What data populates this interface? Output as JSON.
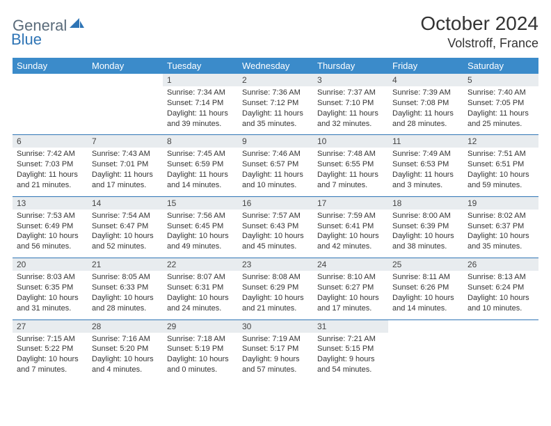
{
  "logo": {
    "general": "General",
    "blue": "Blue"
  },
  "title": "October 2024",
  "location": "Volstroff, France",
  "colors": {
    "header_bg": "#3b8bca",
    "header_text": "#ffffff",
    "daynum_bg": "#e8ecef",
    "rule": "#2e74b5",
    "body_text": "#333333",
    "logo_gray": "#5a6b7a",
    "logo_blue": "#2e74b5"
  },
  "fonts": {
    "title_pt": 28,
    "location_pt": 18,
    "dow_pt": 13,
    "daynum_pt": 12,
    "cell_pt": 11
  },
  "dow": [
    "Sunday",
    "Monday",
    "Tuesday",
    "Wednesday",
    "Thursday",
    "Friday",
    "Saturday"
  ],
  "weeks": [
    [
      null,
      null,
      {
        "n": "1",
        "sr": "Sunrise: 7:34 AM",
        "ss": "Sunset: 7:14 PM",
        "d1": "Daylight: 11 hours",
        "d2": "and 39 minutes."
      },
      {
        "n": "2",
        "sr": "Sunrise: 7:36 AM",
        "ss": "Sunset: 7:12 PM",
        "d1": "Daylight: 11 hours",
        "d2": "and 35 minutes."
      },
      {
        "n": "3",
        "sr": "Sunrise: 7:37 AM",
        "ss": "Sunset: 7:10 PM",
        "d1": "Daylight: 11 hours",
        "d2": "and 32 minutes."
      },
      {
        "n": "4",
        "sr": "Sunrise: 7:39 AM",
        "ss": "Sunset: 7:08 PM",
        "d1": "Daylight: 11 hours",
        "d2": "and 28 minutes."
      },
      {
        "n": "5",
        "sr": "Sunrise: 7:40 AM",
        "ss": "Sunset: 7:05 PM",
        "d1": "Daylight: 11 hours",
        "d2": "and 25 minutes."
      }
    ],
    [
      {
        "n": "6",
        "sr": "Sunrise: 7:42 AM",
        "ss": "Sunset: 7:03 PM",
        "d1": "Daylight: 11 hours",
        "d2": "and 21 minutes."
      },
      {
        "n": "7",
        "sr": "Sunrise: 7:43 AM",
        "ss": "Sunset: 7:01 PM",
        "d1": "Daylight: 11 hours",
        "d2": "and 17 minutes."
      },
      {
        "n": "8",
        "sr": "Sunrise: 7:45 AM",
        "ss": "Sunset: 6:59 PM",
        "d1": "Daylight: 11 hours",
        "d2": "and 14 minutes."
      },
      {
        "n": "9",
        "sr": "Sunrise: 7:46 AM",
        "ss": "Sunset: 6:57 PM",
        "d1": "Daylight: 11 hours",
        "d2": "and 10 minutes."
      },
      {
        "n": "10",
        "sr": "Sunrise: 7:48 AM",
        "ss": "Sunset: 6:55 PM",
        "d1": "Daylight: 11 hours",
        "d2": "and 7 minutes."
      },
      {
        "n": "11",
        "sr": "Sunrise: 7:49 AM",
        "ss": "Sunset: 6:53 PM",
        "d1": "Daylight: 11 hours",
        "d2": "and 3 minutes."
      },
      {
        "n": "12",
        "sr": "Sunrise: 7:51 AM",
        "ss": "Sunset: 6:51 PM",
        "d1": "Daylight: 10 hours",
        "d2": "and 59 minutes."
      }
    ],
    [
      {
        "n": "13",
        "sr": "Sunrise: 7:53 AM",
        "ss": "Sunset: 6:49 PM",
        "d1": "Daylight: 10 hours",
        "d2": "and 56 minutes."
      },
      {
        "n": "14",
        "sr": "Sunrise: 7:54 AM",
        "ss": "Sunset: 6:47 PM",
        "d1": "Daylight: 10 hours",
        "d2": "and 52 minutes."
      },
      {
        "n": "15",
        "sr": "Sunrise: 7:56 AM",
        "ss": "Sunset: 6:45 PM",
        "d1": "Daylight: 10 hours",
        "d2": "and 49 minutes."
      },
      {
        "n": "16",
        "sr": "Sunrise: 7:57 AM",
        "ss": "Sunset: 6:43 PM",
        "d1": "Daylight: 10 hours",
        "d2": "and 45 minutes."
      },
      {
        "n": "17",
        "sr": "Sunrise: 7:59 AM",
        "ss": "Sunset: 6:41 PM",
        "d1": "Daylight: 10 hours",
        "d2": "and 42 minutes."
      },
      {
        "n": "18",
        "sr": "Sunrise: 8:00 AM",
        "ss": "Sunset: 6:39 PM",
        "d1": "Daylight: 10 hours",
        "d2": "and 38 minutes."
      },
      {
        "n": "19",
        "sr": "Sunrise: 8:02 AM",
        "ss": "Sunset: 6:37 PM",
        "d1": "Daylight: 10 hours",
        "d2": "and 35 minutes."
      }
    ],
    [
      {
        "n": "20",
        "sr": "Sunrise: 8:03 AM",
        "ss": "Sunset: 6:35 PM",
        "d1": "Daylight: 10 hours",
        "d2": "and 31 minutes."
      },
      {
        "n": "21",
        "sr": "Sunrise: 8:05 AM",
        "ss": "Sunset: 6:33 PM",
        "d1": "Daylight: 10 hours",
        "d2": "and 28 minutes."
      },
      {
        "n": "22",
        "sr": "Sunrise: 8:07 AM",
        "ss": "Sunset: 6:31 PM",
        "d1": "Daylight: 10 hours",
        "d2": "and 24 minutes."
      },
      {
        "n": "23",
        "sr": "Sunrise: 8:08 AM",
        "ss": "Sunset: 6:29 PM",
        "d1": "Daylight: 10 hours",
        "d2": "and 21 minutes."
      },
      {
        "n": "24",
        "sr": "Sunrise: 8:10 AM",
        "ss": "Sunset: 6:27 PM",
        "d1": "Daylight: 10 hours",
        "d2": "and 17 minutes."
      },
      {
        "n": "25",
        "sr": "Sunrise: 8:11 AM",
        "ss": "Sunset: 6:26 PM",
        "d1": "Daylight: 10 hours",
        "d2": "and 14 minutes."
      },
      {
        "n": "26",
        "sr": "Sunrise: 8:13 AM",
        "ss": "Sunset: 6:24 PM",
        "d1": "Daylight: 10 hours",
        "d2": "and 10 minutes."
      }
    ],
    [
      {
        "n": "27",
        "sr": "Sunrise: 7:15 AM",
        "ss": "Sunset: 5:22 PM",
        "d1": "Daylight: 10 hours",
        "d2": "and 7 minutes."
      },
      {
        "n": "28",
        "sr": "Sunrise: 7:16 AM",
        "ss": "Sunset: 5:20 PM",
        "d1": "Daylight: 10 hours",
        "d2": "and 4 minutes."
      },
      {
        "n": "29",
        "sr": "Sunrise: 7:18 AM",
        "ss": "Sunset: 5:19 PM",
        "d1": "Daylight: 10 hours",
        "d2": "and 0 minutes."
      },
      {
        "n": "30",
        "sr": "Sunrise: 7:19 AM",
        "ss": "Sunset: 5:17 PM",
        "d1": "Daylight: 9 hours",
        "d2": "and 57 minutes."
      },
      {
        "n": "31",
        "sr": "Sunrise: 7:21 AM",
        "ss": "Sunset: 5:15 PM",
        "d1": "Daylight: 9 hours",
        "d2": "and 54 minutes."
      },
      null,
      null
    ]
  ]
}
